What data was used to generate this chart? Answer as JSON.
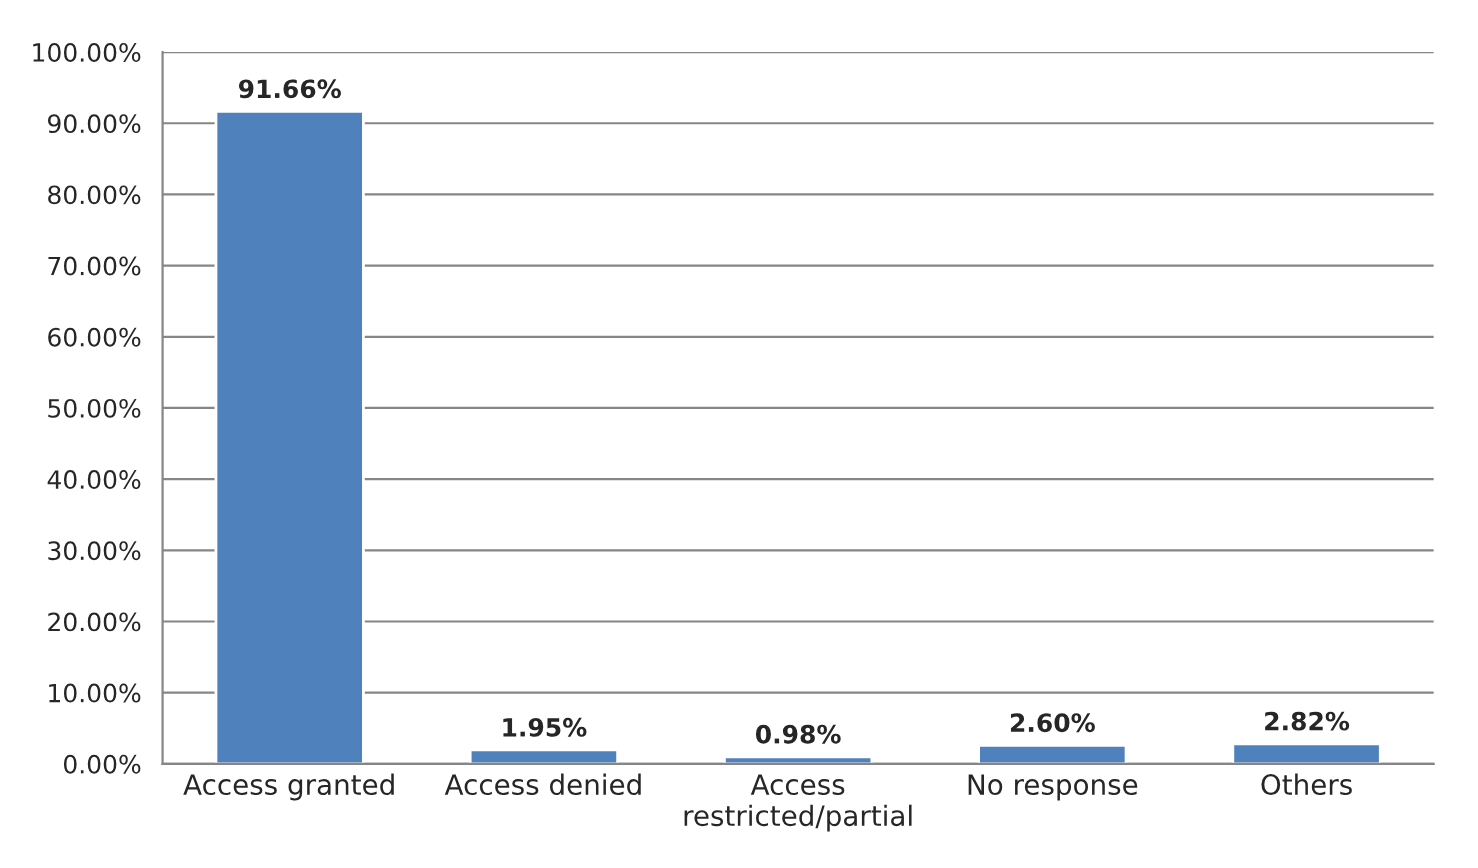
{
  "chart_data": {
    "type": "bar",
    "categories": [
      "Access granted",
      "Access denied",
      "Access restricted/partial",
      "No response",
      "Others"
    ],
    "values": [
      91.66,
      1.95,
      0.98,
      2.6,
      2.82
    ],
    "value_labels": [
      "91.66%",
      "1.95%",
      "0.98%",
      "2.60%",
      "2.82%"
    ],
    "color": "#4f81bd",
    "ylim": [
      0,
      100
    ],
    "yticks": [
      {
        "value": 0,
        "label": "0.00%"
      },
      {
        "value": 10,
        "label": "10.00%"
      },
      {
        "value": 20,
        "label": "20.00%"
      },
      {
        "value": 30,
        "label": "30.00%"
      },
      {
        "value": 40,
        "label": "40.00%"
      },
      {
        "value": 50,
        "label": "50.00%"
      },
      {
        "value": 60,
        "label": "60.00%"
      },
      {
        "value": 70,
        "label": "70.00%"
      },
      {
        "value": 80,
        "label": "80.00%"
      },
      {
        "value": 90,
        "label": "90.00%"
      },
      {
        "value": 100,
        "label": "100.00%"
      }
    ],
    "grid": "y"
  }
}
